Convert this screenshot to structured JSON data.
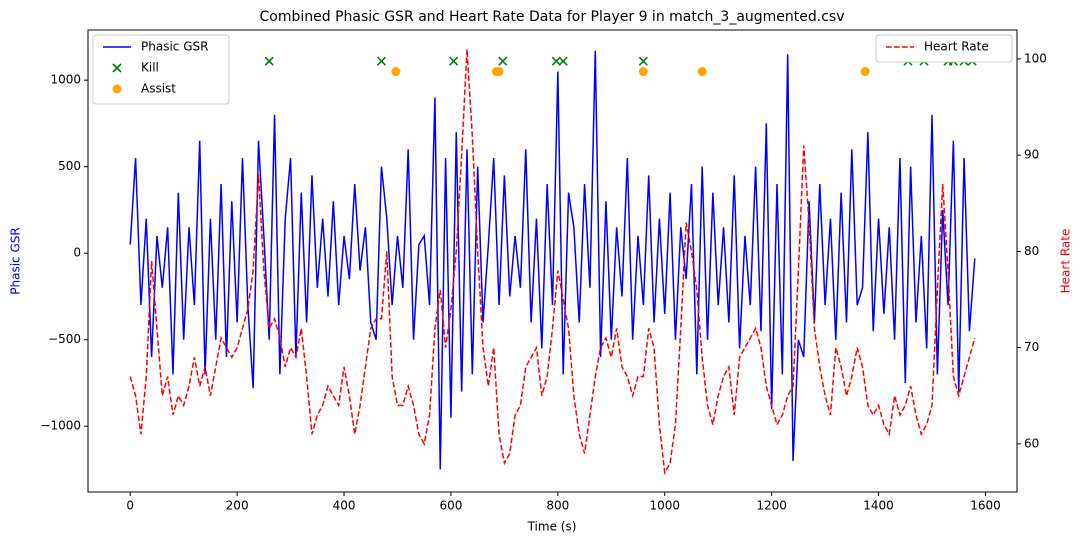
{
  "chart_data": {
    "type": "line",
    "title": "Combined Phasic GSR and Heart Rate Data for Player 9 in match_3_augmented.csv",
    "xlabel": "Time (s)",
    "ylabel": "Phasic GSR",
    "ylabel_color": "blue",
    "y2label": "Heart Rate",
    "y2label_color": "red",
    "xlim": [
      -79,
      1659
    ],
    "ylim": [
      -1380,
      1290
    ],
    "y2lim": [
      55,
      103
    ],
    "xticks": [
      0,
      200,
      400,
      600,
      800,
      1000,
      1200,
      1400,
      1600
    ],
    "yticks": [
      {
        "value": -1000,
        "label": "−1000"
      },
      {
        "value": -500,
        "label": "−500"
      },
      0,
      500,
      1000
    ],
    "y2ticks": [
      60,
      70,
      80,
      90,
      100
    ],
    "legend": "upper left",
    "legend2": "upper right",
    "x": [
      0,
      10,
      20,
      30,
      40,
      50,
      60,
      70,
      80,
      90,
      100,
      110,
      120,
      130,
      140,
      150,
      160,
      170,
      180,
      190,
      200,
      210,
      220,
      230,
      240,
      250,
      260,
      270,
      280,
      290,
      300,
      310,
      320,
      330,
      340,
      350,
      360,
      370,
      380,
      390,
      400,
      410,
      420,
      430,
      440,
      450,
      460,
      470,
      480,
      490,
      500,
      510,
      520,
      530,
      540,
      550,
      560,
      570,
      580,
      590,
      600,
      610,
      620,
      630,
      640,
      650,
      660,
      670,
      680,
      690,
      700,
      710,
      720,
      730,
      740,
      750,
      760,
      770,
      780,
      790,
      800,
      810,
      820,
      830,
      840,
      850,
      860,
      870,
      880,
      890,
      900,
      910,
      920,
      930,
      940,
      950,
      960,
      970,
      980,
      990,
      1000,
      1010,
      1020,
      1030,
      1040,
      1050,
      1060,
      1070,
      1080,
      1090,
      1100,
      1110,
      1120,
      1130,
      1140,
      1150,
      1160,
      1170,
      1180,
      1190,
      1200,
      1210,
      1220,
      1230,
      1240,
      1250,
      1260,
      1270,
      1280,
      1290,
      1300,
      1310,
      1320,
      1330,
      1340,
      1350,
      1360,
      1370,
      1380,
      1390,
      1400,
      1410,
      1420,
      1430,
      1440,
      1450,
      1460,
      1470,
      1480,
      1490,
      1500,
      1510,
      1520,
      1530,
      1540,
      1550,
      1560,
      1570,
      1580
    ],
    "series": [
      {
        "name": "Phasic GSR",
        "color": "blue",
        "linestyle": "solid",
        "axis": "y",
        "values": [
          50,
          550,
          -300,
          200,
          -600,
          100,
          -200,
          150,
          -700,
          350,
          -500,
          150,
          -300,
          650,
          -700,
          200,
          -500,
          400,
          -600,
          300,
          -400,
          550,
          -300,
          -780,
          650,
          100,
          -500,
          800,
          -700,
          200,
          550,
          -600,
          350,
          -400,
          450,
          -200,
          200,
          -250,
          300,
          -300,
          100,
          -150,
          400,
          -100,
          150,
          -400,
          -500,
          500,
          200,
          -300,
          100,
          -200,
          600,
          -500,
          50,
          100,
          -300,
          900,
          -1250,
          550,
          -950,
          700,
          -800,
          600,
          -700,
          500,
          -400,
          50,
          550,
          -300,
          450,
          -250,
          100,
          -200,
          600,
          -400,
          200,
          -550,
          400,
          -300,
          1050,
          -700,
          350,
          150,
          -400,
          400,
          -200,
          1170,
          -600,
          300,
          -500,
          150,
          -250,
          550,
          -500,
          100,
          -300,
          450,
          -400,
          200,
          -350,
          350,
          -500,
          150,
          -150,
          400,
          -700,
          500,
          -500,
          350,
          -300,
          150,
          -400,
          450,
          -550,
          100,
          -300,
          500,
          -450,
          750,
          -900,
          400,
          -700,
          1150,
          -1200,
          -500,
          -600,
          300,
          -400,
          400,
          -300,
          200,
          -500,
          350,
          -400,
          600,
          -300,
          -200,
          700,
          -450,
          200,
          -350,
          150,
          -500,
          550,
          -750,
          500,
          -400,
          100,
          -550,
          800,
          -700,
          250,
          -300,
          650,
          -800,
          550,
          -450,
          -30
        ]
      },
      {
        "name": "Heart Rate",
        "color": "red",
        "linestyle": "dashed",
        "axis": "y2",
        "values": [
          67,
          65,
          61,
          67,
          79,
          72,
          65,
          67,
          63,
          65,
          64,
          66,
          69,
          66,
          68,
          65,
          68,
          71,
          70,
          69,
          70,
          72,
          74,
          78,
          88,
          78,
          72,
          73,
          71,
          68,
          70,
          69,
          72,
          67,
          61,
          63,
          64,
          66,
          65,
          64,
          68,
          65,
          61,
          64,
          68,
          72,
          73,
          73,
          80,
          67,
          64,
          64,
          66,
          64,
          61,
          60,
          63,
          72,
          76,
          70,
          74,
          80,
          90,
          101,
          92,
          80,
          70,
          66,
          70,
          61,
          58,
          59,
          63,
          64,
          68,
          69,
          70,
          65,
          67,
          72,
          78,
          75,
          72,
          65,
          61,
          59,
          63,
          67,
          70,
          71,
          69,
          72,
          68,
          67,
          65,
          67,
          67,
          72,
          70,
          62,
          57,
          58,
          62,
          72,
          83,
          80,
          76,
          69,
          64,
          62,
          65,
          67,
          68,
          63,
          69,
          70,
          71,
          72,
          70,
          66,
          64,
          62,
          63,
          65,
          66,
          78,
          91,
          83,
          72,
          68,
          65,
          63,
          70,
          68,
          65,
          67,
          70,
          68,
          64,
          63,
          64,
          62,
          61,
          65,
          63,
          64,
          66,
          63,
          61,
          62,
          64,
          76,
          87,
          78,
          67,
          65,
          67,
          69,
          71
        ]
      },
      {
        "name": "Kill",
        "type": "scatter",
        "marker": "x",
        "color": "green",
        "axis": "y",
        "x": [
          260,
          470,
          605,
          697,
          797,
          810,
          960,
          1455,
          1485,
          1530,
          1540,
          1560,
          1575
        ],
        "values": [
          1110,
          1110,
          1110,
          1110,
          1110,
          1110,
          1110,
          1110,
          1110,
          1110,
          1110,
          1110,
          1110
        ]
      },
      {
        "name": "Assist",
        "type": "scatter",
        "marker": "o",
        "color": "orange",
        "axis": "y",
        "x": [
          497,
          685,
          690,
          960,
          1070,
          1375
        ],
        "values": [
          1050,
          1050,
          1050,
          1050,
          1050,
          1050
        ]
      }
    ]
  }
}
